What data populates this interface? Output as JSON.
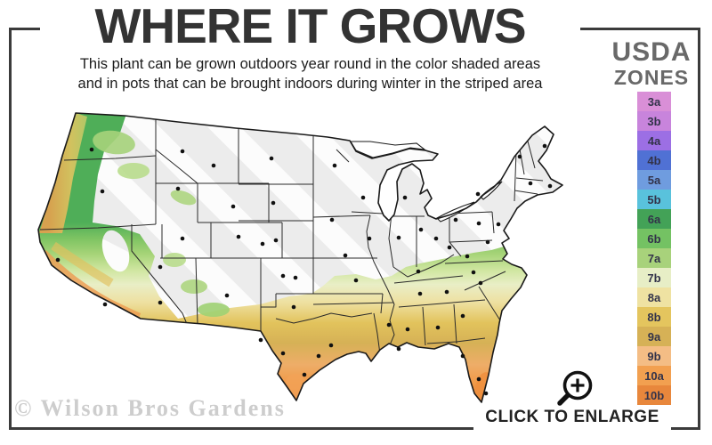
{
  "page": {
    "background": "#ffffff",
    "frame_color": "#3b3b3b"
  },
  "header": {
    "title": "WHERE IT GROWS",
    "subtitle_line1": "This plant can be grown outdoors year round in the color shaded areas",
    "subtitle_line2": "and in pots that can be brought indoors during winter in the striped area"
  },
  "legend": {
    "title_line1": "USDA",
    "title_line2": "ZONES",
    "zones": [
      {
        "label": "3a",
        "color": "#d98fd7"
      },
      {
        "label": "3b",
        "color": "#c884dc"
      },
      {
        "label": "4a",
        "color": "#9c6fe4"
      },
      {
        "label": "4b",
        "color": "#5071d4"
      },
      {
        "label": "5a",
        "color": "#6f9cdf"
      },
      {
        "label": "5b",
        "color": "#59c2dc"
      },
      {
        "label": "6a",
        "color": "#43a257"
      },
      {
        "label": "6b",
        "color": "#74c263"
      },
      {
        "label": "7a",
        "color": "#a8d27b"
      },
      {
        "label": "7b",
        "color": "#e7eec6"
      },
      {
        "label": "8a",
        "color": "#efe2a2"
      },
      {
        "label": "8b",
        "color": "#e4c55e"
      },
      {
        "label": "9a",
        "color": "#d6b156"
      },
      {
        "label": "9b",
        "color": "#f4bd85"
      },
      {
        "label": "10a",
        "color": "#f2a050"
      },
      {
        "label": "10b",
        "color": "#e8873c"
      }
    ]
  },
  "map": {
    "striped_area_color": "#ececec",
    "stripe_color": "#ffffff",
    "outline_color": "#1a1a1a",
    "city_dot_color": "#111111",
    "zone_gradient_top_color": "#4fae58",
    "zone_gradient_bottom_color": "#e5823a"
  },
  "footer": {
    "watermark": "© Wilson Bros Gardens",
    "enlarge_label": "CLICK TO ENLARGE"
  }
}
